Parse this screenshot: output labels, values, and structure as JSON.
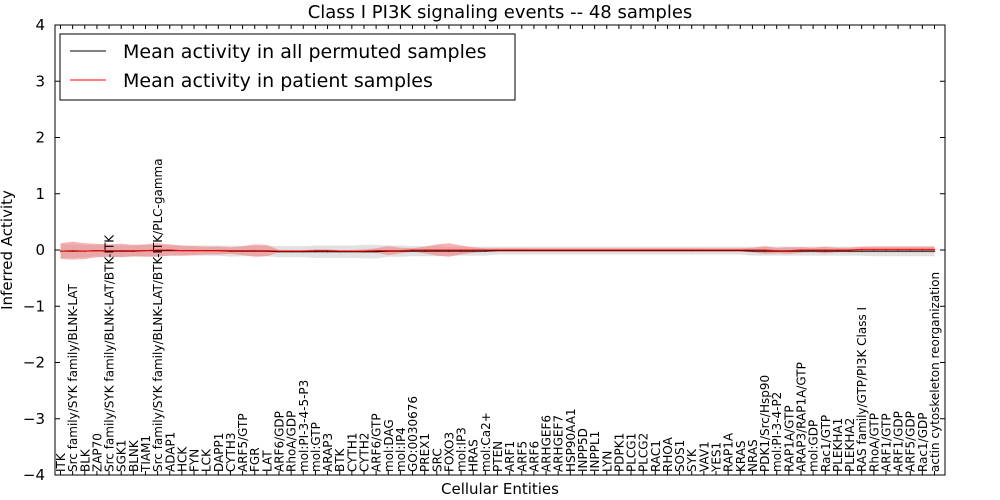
{
  "chart_data": {
    "type": "line",
    "title": "Class I PI3K signaling events -- 48 samples",
    "xlabel": "Cellular Entities",
    "ylabel": "Inferred Activity",
    "ylim": [
      -4,
      4
    ],
    "yticks": [
      -4,
      -3,
      -2,
      -1,
      0,
      1,
      2,
      3,
      4
    ],
    "ytick_labels": [
      "−4",
      "−3",
      "−2",
      "−1",
      "0",
      "1",
      "2",
      "3",
      "4"
    ],
    "grid": false,
    "legend_position": "top-left",
    "categories": [
      "ITK",
      "Src family/SYK family/BLNK-LAT",
      "BLK",
      "ZAP70",
      "Src family/SYK family/BLNK-LAT/BTK-ITK",
      "SGK1",
      "BLNK",
      "TIAM1",
      "Src family/SYK family/BLNK-LAT/BTK-ITK/PLC-gamma",
      "ADAP1",
      "HCK",
      "FYN",
      "LCK",
      "DAPP1",
      "CYTH3",
      "ARF5/GTP",
      "FGR",
      "LAT",
      "ARF6/GDP",
      "RhoA/GDP",
      "mol:PI-3-4-5-P3",
      "mol:GTP",
      "ARAP3",
      "BTK",
      "CYTH1",
      "CYTH2",
      "ARF6/GTP",
      "mol:DAG",
      "mol:IP4",
      "GO:0030676",
      "PREX1",
      "SRC",
      "FOXO3",
      "mol:IP3",
      "HRAS",
      "mol:Ca2+",
      "PTEN",
      "ARF1",
      "ARF5",
      "ARF6",
      "ARHGEF6",
      "ARHGEF7",
      "HSP90AA1",
      "INPP5D",
      "INPPL1",
      "LYN",
      "PDPK1",
      "PLCG1",
      "PLCG2",
      "RAC1",
      "RHOA",
      "SOS1",
      "SYK",
      "VAV1",
      "YES1",
      "RAP1A",
      "KRAS",
      "NRAS",
      "PDK1/Src/Hsp90",
      "mol:PI-3-4-P2",
      "RAP1A/GTP",
      "ARAP3/RAP1A/GTP",
      "mol:GDP",
      "Rac1/GTP",
      "PLEKHA1",
      "PLEKHA2",
      "RAS family/GTP/PI3K Class I",
      "RhoA/GTP",
      "ARF1/GTP",
      "ARF1/GDP",
      "ARF5/GDP",
      "Rac1/GDP",
      "actin cytoskeleton reorganization"
    ],
    "series": [
      {
        "name": "Mean activity in all permuted samples",
        "color": "#000000",
        "band_color": "#c8c8c8",
        "values": [
          -0.02,
          -0.02,
          -0.02,
          -0.01,
          -0.02,
          -0.02,
          -0.02,
          -0.01,
          -0.01,
          -0.01,
          -0.01,
          -0.01,
          -0.01,
          -0.01,
          -0.02,
          -0.02,
          -0.02,
          -0.02,
          -0.03,
          -0.03,
          -0.03,
          -0.03,
          -0.03,
          -0.03,
          -0.03,
          -0.03,
          -0.03,
          -0.02,
          -0.02,
          -0.02,
          -0.02,
          -0.02,
          -0.02,
          -0.02,
          -0.02,
          -0.02,
          -0.01,
          -0.01,
          -0.01,
          -0.01,
          -0.01,
          -0.01,
          -0.01,
          -0.01,
          -0.01,
          -0.01,
          -0.01,
          -0.01,
          -0.01,
          -0.01,
          -0.01,
          -0.01,
          -0.01,
          -0.01,
          -0.01,
          -0.01,
          -0.01,
          -0.02,
          -0.02,
          -0.02,
          -0.02,
          -0.02,
          -0.02,
          -0.02,
          -0.02,
          -0.02,
          -0.02,
          -0.02,
          -0.02,
          -0.02,
          -0.02,
          -0.02,
          -0.02
        ],
        "band": [
          0.12,
          0.12,
          0.11,
          0.1,
          0.11,
          0.1,
          0.1,
          0.1,
          0.1,
          0.09,
          0.09,
          0.09,
          0.09,
          0.09,
          0.1,
          0.09,
          0.09,
          0.09,
          0.1,
          0.1,
          0.1,
          0.11,
          0.11,
          0.11,
          0.11,
          0.12,
          0.12,
          0.1,
          0.1,
          0.09,
          0.09,
          0.09,
          0.08,
          0.08,
          0.08,
          0.08,
          0.07,
          0.07,
          0.07,
          0.07,
          0.07,
          0.07,
          0.07,
          0.07,
          0.07,
          0.07,
          0.07,
          0.07,
          0.07,
          0.07,
          0.07,
          0.07,
          0.07,
          0.07,
          0.07,
          0.07,
          0.07,
          0.08,
          0.08,
          0.08,
          0.08,
          0.08,
          0.08,
          0.08,
          0.08,
          0.08,
          0.08,
          0.09,
          0.09,
          0.09,
          0.09,
          0.09,
          0.09
        ]
      },
      {
        "name": "Mean activity in patient samples",
        "color": "#ff0000",
        "band_color": "#f08080",
        "values": [
          -0.02,
          -0.01,
          -0.02,
          -0.01,
          -0.01,
          -0.01,
          -0.01,
          -0.01,
          0.0,
          0.0,
          -0.01,
          -0.01,
          -0.01,
          -0.01,
          -0.01,
          -0.01,
          -0.01,
          -0.01,
          -0.02,
          -0.02,
          -0.02,
          -0.01,
          -0.01,
          -0.02,
          -0.02,
          -0.02,
          -0.01,
          -0.01,
          -0.01,
          0.0,
          0.0,
          0.0,
          0.0,
          0.0,
          0.0,
          0.0,
          0.0,
          0.0,
          0.0,
          0.0,
          0.0,
          0.0,
          0.0,
          0.0,
          0.0,
          0.0,
          0.0,
          0.0,
          0.0,
          0.0,
          0.0,
          0.0,
          0.0,
          0.0,
          0.0,
          0.0,
          0.0,
          0.0,
          0.0,
          -0.01,
          -0.01,
          0.0,
          0.0,
          0.0,
          0.0,
          0.0,
          0.01,
          0.01,
          0.01,
          0.01,
          0.01,
          0.01,
          0.01
        ],
        "band": [
          0.14,
          0.16,
          0.14,
          0.12,
          0.11,
          0.12,
          0.1,
          0.11,
          0.12,
          0.1,
          0.09,
          0.08,
          0.07,
          0.07,
          0.06,
          0.08,
          0.11,
          0.1,
          0.02,
          0.02,
          0.02,
          0.02,
          0.02,
          0.02,
          0.02,
          0.03,
          0.04,
          0.08,
          0.05,
          0.03,
          0.06,
          0.1,
          0.12,
          0.08,
          0.05,
          0.03,
          0.03,
          0.03,
          0.03,
          0.03,
          0.03,
          0.03,
          0.03,
          0.03,
          0.03,
          0.03,
          0.03,
          0.03,
          0.03,
          0.03,
          0.03,
          0.03,
          0.03,
          0.03,
          0.03,
          0.03,
          0.03,
          0.04,
          0.07,
          0.05,
          0.06,
          0.05,
          0.04,
          0.06,
          0.04,
          0.04,
          0.05,
          0.05,
          0.05,
          0.05,
          0.05,
          0.05,
          0.05
        ]
      }
    ]
  }
}
